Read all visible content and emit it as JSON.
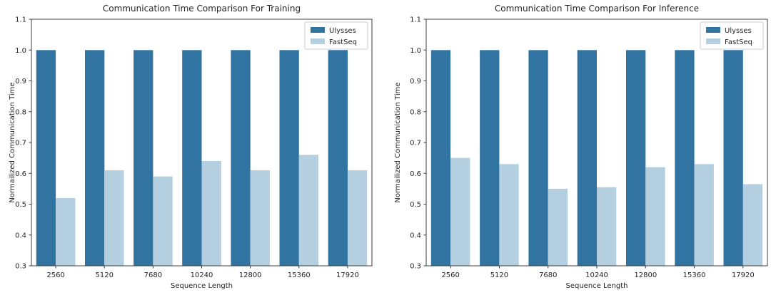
{
  "figure": {
    "background": "#ffffff",
    "text_color": "#262626",
    "spine_color": "#3c3c3c",
    "legend_border_color": "#cccccc"
  },
  "chart_data": [
    {
      "type": "bar",
      "title": "Communication Time Comparison For Training",
      "xlabel": "Sequence Length",
      "ylabel": "Normailized Communication Time",
      "categories": [
        "2560",
        "5120",
        "7680",
        "10240",
        "12800",
        "15360",
        "17920"
      ],
      "series": [
        {
          "name": "Ulysses",
          "color": "#3274a1",
          "values": [
            1.0,
            1.0,
            1.0,
            1.0,
            1.0,
            1.0,
            1.0
          ]
        },
        {
          "name": "FastSeq",
          "color": "#b4cfe0",
          "values": [
            0.52,
            0.61,
            0.59,
            0.64,
            0.61,
            0.66,
            0.61
          ]
        }
      ],
      "ylim": [
        0.3,
        1.1
      ],
      "ytick_step": 0.1,
      "grid": false,
      "legend_position": "upper right"
    },
    {
      "type": "bar",
      "title": "Communication Time Comparison For Inference",
      "xlabel": "Sequence Length",
      "ylabel": "Normailized Communication Time",
      "categories": [
        "2560",
        "5120",
        "7680",
        "10240",
        "12800",
        "15360",
        "17920"
      ],
      "series": [
        {
          "name": "Ulysses",
          "color": "#3274a1",
          "values": [
            1.0,
            1.0,
            1.0,
            1.0,
            1.0,
            1.0,
            1.0
          ]
        },
        {
          "name": "FastSeq",
          "color": "#b4cfe0",
          "values": [
            0.65,
            0.63,
            0.55,
            0.555,
            0.62,
            0.63,
            0.565
          ]
        }
      ],
      "ylim": [
        0.3,
        1.1
      ],
      "ytick_step": 0.1,
      "grid": false,
      "legend_position": "upper right"
    }
  ]
}
